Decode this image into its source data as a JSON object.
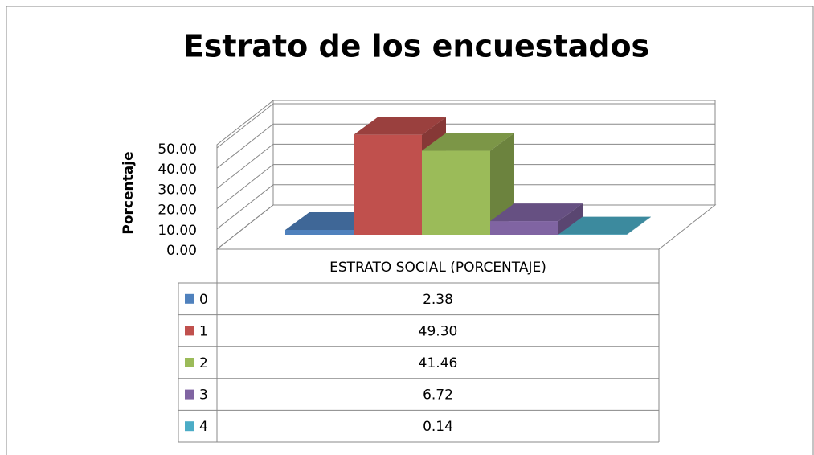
{
  "chart_data": {
    "type": "bar3d",
    "title": "Estrato de los encuestados",
    "y_label": "Porcentaje",
    "categories": [
      "ESTRATO SOCIAL (PORCENTAJE)"
    ],
    "series": [
      {
        "name": "0",
        "color": "#4f81bd",
        "values": [
          2.38
        ],
        "value_labels": [
          "2.38"
        ]
      },
      {
        "name": "1",
        "color": "#c0504d",
        "values": [
          49.3
        ],
        "value_labels": [
          "49.30"
        ]
      },
      {
        "name": "2",
        "color": "#9bbb59",
        "values": [
          41.46
        ],
        "value_labels": [
          "41.46"
        ]
      },
      {
        "name": "3",
        "color": "#8064a2",
        "values": [
          6.72
        ],
        "value_labels": [
          "6.72"
        ]
      },
      {
        "name": "4",
        "color": "#4bacc6",
        "values": [
          0.14
        ],
        "value_labels": [
          "0.14"
        ]
      }
    ],
    "ylim": [
      0,
      50
    ],
    "yticks": [
      {
        "value": 0,
        "label": "0.00"
      },
      {
        "value": 10,
        "label": "10.00"
      },
      {
        "value": 20,
        "label": "20.00"
      },
      {
        "value": 30,
        "label": "30.00"
      },
      {
        "value": 40,
        "label": "40.00"
      },
      {
        "value": 50,
        "label": "50.00"
      }
    ],
    "grid": true
  }
}
